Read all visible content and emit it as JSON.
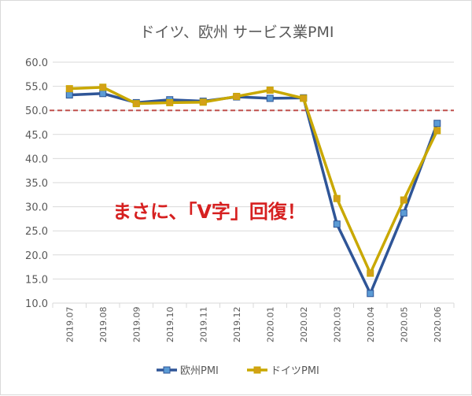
{
  "chart_data": {
    "type": "line",
    "title": "ドイツ、欧州 サービス業PMI",
    "annotation": "まさに、「V字」回復！",
    "categories": [
      "2019.07",
      "2019.08",
      "2019.09",
      "2019.10",
      "2019.11",
      "2019.12",
      "2020.01",
      "2020.02",
      "2020.03",
      "2020.04",
      "2020.05",
      "2020.06"
    ],
    "series": [
      {
        "name": "欧州PMI",
        "color": "#2f5597",
        "marker_color": "#5b9bd5",
        "values": [
          53.2,
          53.5,
          51.6,
          52.2,
          51.9,
          52.8,
          52.5,
          52.6,
          26.4,
          12.0,
          28.7,
          47.3
        ]
      },
      {
        "name": "ドイツPMI",
        "color": "#c9a800",
        "marker_color": "#d4a017",
        "values": [
          54.5,
          54.8,
          51.4,
          51.6,
          51.7,
          52.9,
          54.2,
          52.5,
          31.7,
          16.2,
          31.4,
          45.8
        ]
      }
    ],
    "reference_line": {
      "value": 50,
      "color": "#c0504d",
      "style": "dashed"
    },
    "ylim": [
      10,
      60
    ],
    "yticks": [
      "10.0",
      "15.0",
      "20.0",
      "25.0",
      "30.0",
      "35.0",
      "40.0",
      "45.0",
      "50.0",
      "55.0",
      "60.0"
    ],
    "grid": true,
    "legend": "bottom"
  }
}
